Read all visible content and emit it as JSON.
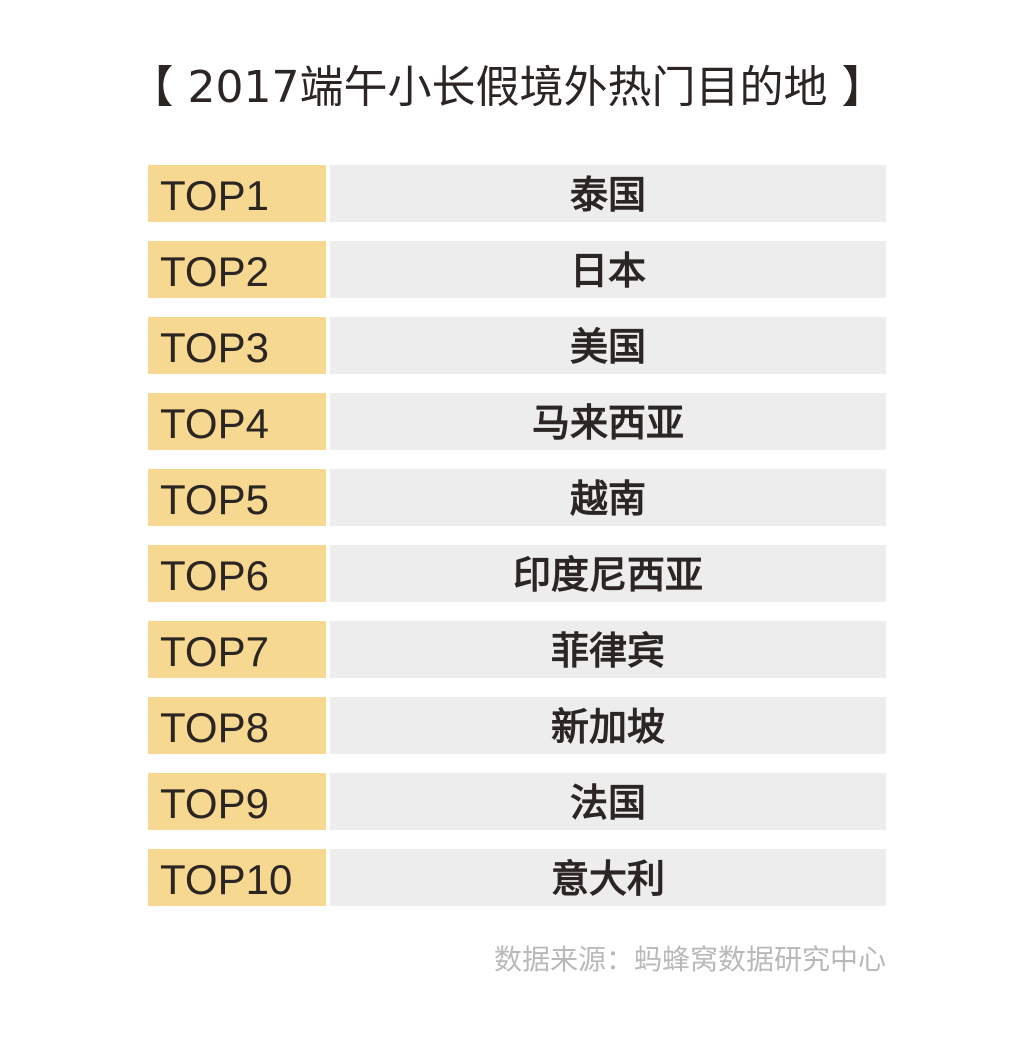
{
  "title": "【 2017端午小长假境外热门目的地 】",
  "rows": [
    {
      "rank": "TOP1",
      "destination": "泰国"
    },
    {
      "rank": "TOP2",
      "destination": "日本"
    },
    {
      "rank": "TOP3",
      "destination": "美国"
    },
    {
      "rank": "TOP4",
      "destination": "马来西亚"
    },
    {
      "rank": "TOP5",
      "destination": "越南"
    },
    {
      "rank": "TOP6",
      "destination": "印度尼西亚"
    },
    {
      "rank": "TOP7",
      "destination": "菲律宾"
    },
    {
      "rank": "TOP8",
      "destination": "新加坡"
    },
    {
      "rank": "TOP9",
      "destination": "法国"
    },
    {
      "rank": "TOP10",
      "destination": "意大利"
    }
  ],
  "source": "数据来源：蚂蜂窝数据研究中心",
  "colors": {
    "rank_background": "#f7d891",
    "destination_background": "#ededed",
    "text": "#2b2523",
    "source_text": "#b9b9b9"
  }
}
